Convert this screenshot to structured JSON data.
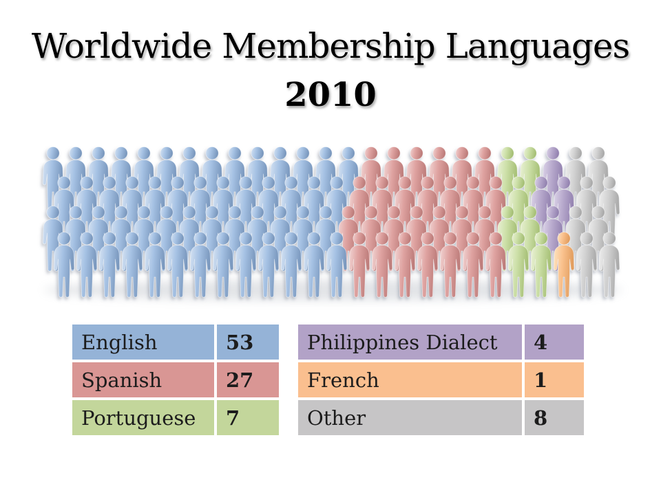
{
  "slide": {
    "title": "Worldwide Membership Languages",
    "year": "2010"
  },
  "chart_data": {
    "type": "pictograph",
    "title": "Worldwide Membership Languages 2010",
    "description": "Crowd of 100 person icons in 4 staggered rows of 25; one icon per membership unit; color encodes language",
    "categories": [
      "English",
      "Spanish",
      "Portuguese",
      "Philippines Dialect",
      "French",
      "Other"
    ],
    "values": [
      53,
      27,
      7,
      4,
      1,
      8
    ],
    "total_figures": 100,
    "legend_position": "bottom tables",
    "series": [
      {
        "name": "English",
        "key": "english",
        "value": 53,
        "color": "#95B3D7"
      },
      {
        "name": "Spanish",
        "key": "spanish",
        "value": 27,
        "color": "#D99694"
      },
      {
        "name": "Portuguese",
        "key": "portuguese",
        "value": 7,
        "color": "#C3D69B"
      },
      {
        "name": "Philippines Dialect",
        "key": "philippines",
        "value": 4,
        "color": "#B2A2C7"
      },
      {
        "name": "French",
        "key": "french",
        "value": 1,
        "color": "#FABF8F"
      },
      {
        "name": "Other",
        "key": "other",
        "value": 8,
        "color": "#C6C5C6"
      }
    ],
    "figure_rows": [
      [
        {
          "key": "english",
          "count": 14
        },
        {
          "key": "spanish",
          "count": 6
        },
        {
          "key": "portuguese",
          "count": 2
        },
        {
          "key": "philippines",
          "count": 1
        },
        {
          "key": "other",
          "count": 2
        }
      ],
      [
        {
          "key": "english",
          "count": 13
        },
        {
          "key": "spanish",
          "count": 7
        },
        {
          "key": "portuguese",
          "count": 1
        },
        {
          "key": "philippines",
          "count": 2
        },
        {
          "key": "other",
          "count": 2
        }
      ],
      [
        {
          "key": "english",
          "count": 13
        },
        {
          "key": "spanish",
          "count": 7
        },
        {
          "key": "portuguese",
          "count": 2
        },
        {
          "key": "philippines",
          "count": 1
        },
        {
          "key": "other",
          "count": 2
        }
      ],
      [
        {
          "key": "english",
          "count": 13
        },
        {
          "key": "spanish",
          "count": 7
        },
        {
          "key": "portuguese",
          "count": 2
        },
        {
          "key": "french",
          "count": 1
        },
        {
          "key": "other",
          "count": 2
        }
      ]
    ],
    "figure_palette": {
      "english": {
        "light": "#D5E2F2",
        "base": "#A6C2E4",
        "dark": "#7896BC"
      },
      "spanish": {
        "light": "#F1D4D3",
        "base": "#DFA3A1",
        "dark": "#BC7B79"
      },
      "portuguese": {
        "light": "#EAF1D6",
        "base": "#CDE0A9",
        "dark": "#A4BE73"
      },
      "philippines": {
        "light": "#DCD4E8",
        "base": "#B9ABCE",
        "dark": "#9281AF"
      },
      "french": {
        "light": "#FDE4C2",
        "base": "#FAC28E",
        "dark": "#E09B5C"
      },
      "other": {
        "light": "#EDEDED",
        "base": "#D2D2D2",
        "dark": "#A8A8A8"
      }
    }
  },
  "tables": {
    "left": [
      {
        "label": "English",
        "value": "53",
        "key": "english"
      },
      {
        "label": "Spanish",
        "value": "27",
        "key": "spanish"
      },
      {
        "label": "Portuguese",
        "value": "7",
        "key": "portuguese"
      }
    ],
    "right": [
      {
        "label": "Philippines Dialect",
        "value": "4",
        "key": "philippines"
      },
      {
        "label": "French",
        "value": "1",
        "key": "french"
      },
      {
        "label": "Other",
        "value": "8",
        "key": "other"
      }
    ]
  },
  "table_colors": {
    "english": "#95B3D7",
    "spanish": "#D99694",
    "portuguese": "#C3D69B",
    "philippines": "#B2A2C7",
    "french": "#FABF8F",
    "other": "#C6C5C6"
  }
}
